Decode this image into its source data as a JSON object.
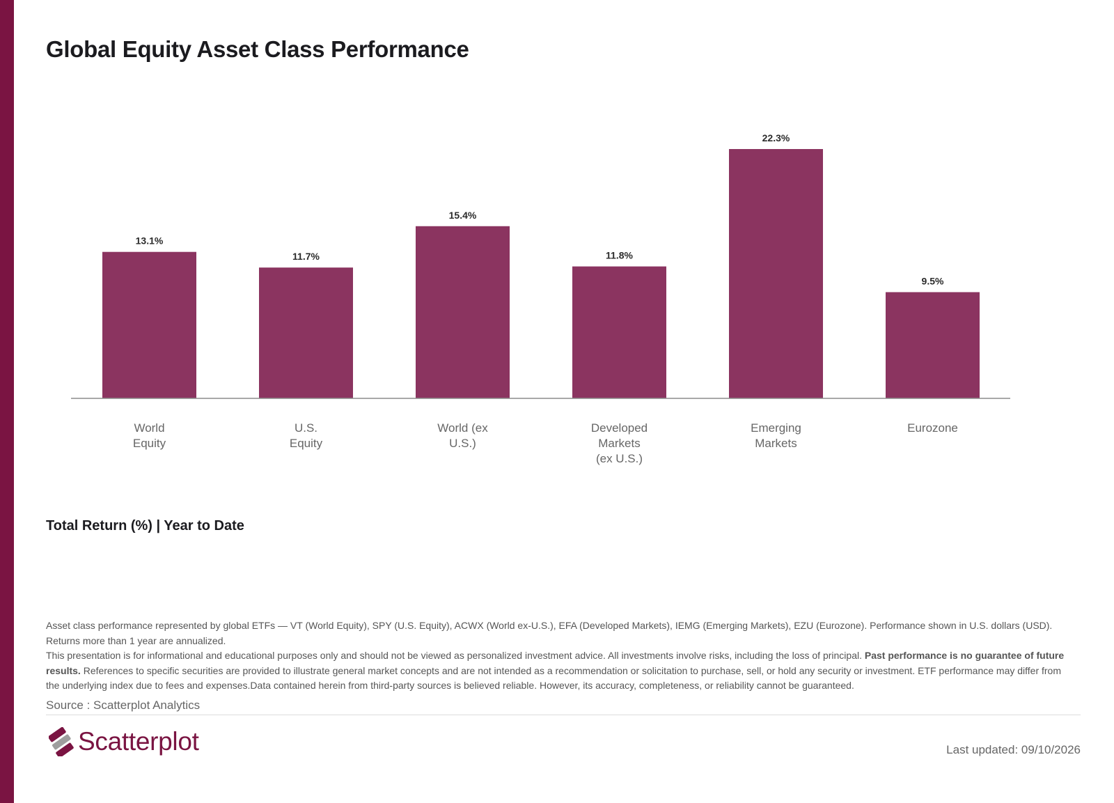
{
  "page": {
    "title": "Global Equity Asset Class Performance",
    "subtitle": "Total Return (%) | Year to Date",
    "disclaimer_1": "Asset class performance represented by global ETFs — VT (World Equity), SPY (U.S. Equity), ACWX (World ex-U.S.), EFA (Developed Markets), IEMG (Emerging Markets), EZU (Eurozone). Performance shown in U.S. dollars (USD). Returns more than 1 year are annualized.",
    "disclaimer_2a": "This presentation is for informational and educational purposes only and should not be viewed as personalized investment advice. All investments involve risks, including the loss of principal. ",
    "disclaimer_2b": "Past performance is no guarantee of future results.",
    "disclaimer_2c": " References to specific securities are provided to illustrate general market concepts and are not intended as a recommendation or solicitation to purchase, sell, or hold any security or investment. ETF performance may differ from the underlying index due to fees and expenses.Data contained herein from third-party sources is believed reliable. However, its accuracy, completeness, or reliability cannot be guaranteed.",
    "source": "Source : Scatterplot Analytics",
    "brand": "Scatterplot",
    "logo_icon": "scatterplot-logo-icon",
    "last_updated": "Last updated: 09/10/2026",
    "accent_color": "#7a1442"
  },
  "chart_data": {
    "type": "bar",
    "categories": [
      [
        "World",
        "Equity"
      ],
      [
        "U.S.",
        "Equity"
      ],
      [
        "World (ex",
        "U.S.)"
      ],
      [
        "Developed",
        "Markets",
        "(ex U.S.)"
      ],
      [
        "Emerging",
        "Markets"
      ],
      [
        "Eurozone"
      ]
    ],
    "values": [
      13.1,
      11.7,
      15.4,
      11.8,
      22.3,
      9.5
    ],
    "data_labels": [
      "13.1%",
      "11.7%",
      "15.4%",
      "11.8%",
      "22.3%",
      "9.5%"
    ],
    "ylim": [
      0,
      22.3
    ],
    "bar_color": "#8b3460",
    "grid": false,
    "legend": "none"
  }
}
